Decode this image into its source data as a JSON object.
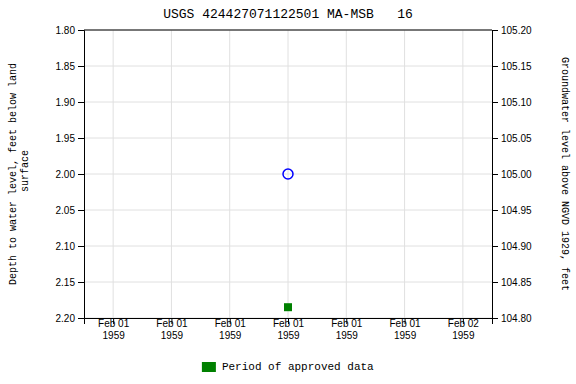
{
  "chart_data": {
    "type": "scatter",
    "title": "USGS 424427071122501 MA-MSB   16",
    "ylabel": "Depth to water level, feet below land\n surface",
    "y2label": "Groundwater level above NGVD 1929, feet",
    "categories": [
      "Feb 01\n1959",
      "Feb 01\n1959",
      "Feb 01\n1959",
      "Feb 01\n1959",
      "Feb 01\n1959",
      "Feb 01\n1959",
      "Feb 02\n1959"
    ],
    "ylim": [
      2.2,
      1.8
    ],
    "yticks": [
      {
        "value": 1.8,
        "label": "1.80"
      },
      1.85,
      {
        "value": 1.9,
        "label": "1.90"
      },
      1.95,
      {
        "value": 2.0,
        "label": "2.00"
      },
      2.05,
      {
        "value": 2.1,
        "label": "2.10"
      },
      2.15,
      {
        "value": 2.2,
        "label": "2.20"
      }
    ],
    "y2lim": [
      104.8,
      105.2
    ],
    "y2ticks": [
      {
        "value": 104.8,
        "label": "104.80"
      },
      104.85,
      {
        "value": 104.9,
        "label": "104.90"
      },
      104.95,
      {
        "value": 105.0,
        "label": "105.00"
      },
      105.05,
      {
        "value": 105.1,
        "label": "105.10"
      },
      105.15,
      {
        "value": 105.2,
        "label": "105.20"
      }
    ],
    "grid": true,
    "legend": "bottom",
    "series": [
      {
        "color": "blue",
        "marker": "circle",
        "values": [
          null,
          null,
          null,
          2.0,
          null,
          null,
          null
        ]
      },
      {
        "name": "Period of approved data",
        "color": "#008000",
        "marker": "square",
        "values": [
          null,
          null,
          null,
          2.185,
          null,
          null,
          null
        ]
      }
    ]
  }
}
